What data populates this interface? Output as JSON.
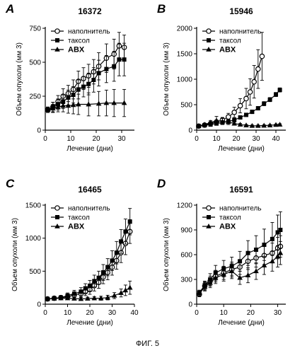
{
  "caption": "ФИГ. 5",
  "chart_data": [
    {
      "type": "line",
      "panel": "A",
      "title": "16372",
      "xlabel": "Лечение (дни)",
      "ylabel": "Объем опухоли (мм 3)",
      "xlim": [
        0,
        35
      ],
      "ylim": [
        0,
        750
      ],
      "xticks": [
        0,
        10,
        20,
        30
      ],
      "yticks": [
        0,
        250,
        500,
        750
      ],
      "legend": [
        "наполнитель",
        "таксол",
        "ABX"
      ],
      "legend_position": "top-left",
      "series": [
        {
          "name": "наполнитель",
          "marker": "open-circle",
          "x": [
            1,
            3,
            5,
            7,
            9,
            11,
            13,
            15,
            17,
            19,
            21,
            24,
            27,
            29,
            31
          ],
          "y": [
            150,
            170,
            210,
            250,
            270,
            300,
            360,
            380,
            400,
            430,
            470,
            530,
            560,
            620,
            610
          ],
          "err": [
            20,
            35,
            45,
            55,
            60,
            70,
            75,
            80,
            85,
            90,
            100,
            105,
            110,
            100,
            90
          ]
        },
        {
          "name": "таксол",
          "marker": "filled-square",
          "x": [
            1,
            3,
            5,
            7,
            9,
            11,
            13,
            15,
            17,
            19,
            21,
            24,
            27,
            29,
            31
          ],
          "y": [
            150,
            170,
            190,
            210,
            240,
            260,
            300,
            320,
            340,
            370,
            420,
            450,
            470,
            520,
            520
          ],
          "err": [
            20,
            35,
            40,
            50,
            55,
            60,
            70,
            75,
            80,
            90,
            95,
            100,
            110,
            120,
            120
          ]
        },
        {
          "name": "ABX",
          "marker": "filled-triangle",
          "x": [
            1,
            3,
            5,
            7,
            9,
            11,
            13,
            17,
            21,
            24,
            27,
            31
          ],
          "y": [
            150,
            160,
            170,
            180,
            180,
            185,
            190,
            190,
            195,
            200,
            200,
            200
          ],
          "err": [
            20,
            30,
            35,
            45,
            55,
            65,
            75,
            85,
            90,
            95,
            100,
            100
          ]
        }
      ]
    },
    {
      "type": "line",
      "panel": "B",
      "title": "15946",
      "xlabel": "Лечение (дни)",
      "ylabel": "Объем опухоли (мм 3)",
      "xlim": [
        0,
        45
      ],
      "ylim": [
        0,
        2000
      ],
      "xticks": [
        0,
        10,
        20,
        30,
        40
      ],
      "yticks": [
        0,
        500,
        1000,
        1500,
        2000
      ],
      "legend": [
        "наполнитель",
        "таксол",
        "ABX"
      ],
      "legend_position": "top-left",
      "series": [
        {
          "name": "наполнитель",
          "marker": "open-circle",
          "x": [
            1,
            4,
            7,
            10,
            13,
            16,
            19,
            22,
            25,
            27,
            29,
            31,
            33
          ],
          "y": [
            80,
            100,
            130,
            160,
            200,
            260,
            350,
            480,
            620,
            750,
            950,
            1200,
            1450
          ],
          "err": [
            20,
            25,
            30,
            40,
            50,
            70,
            100,
            140,
            200,
            260,
            320,
            380,
            470
          ]
        },
        {
          "name": "таксол",
          "marker": "filled-square",
          "x": [
            1,
            4,
            7,
            10,
            13,
            16,
            19,
            22,
            25,
            28,
            31,
            34,
            37,
            40,
            42
          ],
          "y": [
            80,
            95,
            110,
            130,
            150,
            170,
            200,
            250,
            300,
            360,
            430,
            520,
            600,
            700,
            790
          ],
          "err": [
            15,
            15,
            20,
            20,
            25,
            25,
            30,
            30,
            30,
            35,
            35,
            40,
            40,
            40,
            40
          ]
        },
        {
          "name": "ABX",
          "marker": "filled-triangle",
          "x": [
            1,
            4,
            7,
            10,
            13,
            16,
            19,
            22,
            25,
            28,
            31,
            34,
            37,
            40,
            42
          ],
          "y": [
            80,
            110,
            150,
            190,
            170,
            160,
            130,
            110,
            95,
            85,
            85,
            90,
            95,
            105,
            110
          ],
          "err": [
            15,
            20,
            40,
            80,
            60,
            50,
            30,
            20,
            15,
            15,
            15,
            15,
            15,
            15,
            15
          ]
        }
      ]
    },
    {
      "type": "line",
      "panel": "C",
      "title": "16465",
      "xlabel": "Лечение (дни)",
      "ylabel": "Объем опухоли (мм 3)",
      "xlim": [
        0,
        40
      ],
      "ylim": [
        0,
        1500
      ],
      "xticks": [
        0,
        10,
        20,
        30,
        40
      ],
      "yticks": [
        0,
        500,
        1000,
        1500
      ],
      "legend": [
        "наполнитель",
        "таксол",
        "ABX"
      ],
      "legend_position": "top-left",
      "series": [
        {
          "name": "наполнитель",
          "marker": "open-circle",
          "x": [
            1,
            4,
            7,
            10,
            13,
            16,
            18,
            20,
            22,
            24,
            26,
            28,
            30,
            32,
            34,
            36,
            38
          ],
          "y": [
            80,
            90,
            100,
            110,
            140,
            160,
            190,
            220,
            280,
            330,
            410,
            480,
            560,
            660,
            780,
            920,
            1100
          ],
          "err": [
            20,
            25,
            30,
            35,
            40,
            50,
            60,
            70,
            80,
            90,
            100,
            110,
            120,
            130,
            150,
            170,
            180
          ]
        },
        {
          "name": "таксол",
          "marker": "filled-square",
          "x": [
            1,
            4,
            7,
            10,
            13,
            16,
            18,
            20,
            22,
            24,
            26,
            28,
            30,
            32,
            34,
            36,
            38
          ],
          "y": [
            80,
            90,
            100,
            130,
            160,
            190,
            240,
            280,
            350,
            400,
            480,
            560,
            660,
            780,
            950,
            1100,
            1250
          ],
          "err": [
            20,
            25,
            30,
            40,
            50,
            60,
            70,
            80,
            90,
            100,
            120,
            130,
            150,
            170,
            180,
            190,
            200
          ]
        },
        {
          "name": "ABX",
          "marker": "filled-triangle",
          "x": [
            1,
            4,
            7,
            10,
            13,
            16,
            19,
            22,
            25,
            28,
            31,
            34,
            36,
            38
          ],
          "y": [
            80,
            85,
            90,
            90,
            85,
            80,
            85,
            90,
            90,
            100,
            130,
            170,
            210,
            250
          ],
          "err": [
            15,
            15,
            20,
            20,
            20,
            20,
            20,
            25,
            30,
            35,
            45,
            60,
            80,
            100
          ]
        }
      ]
    },
    {
      "type": "line",
      "panel": "D",
      "title": "16591",
      "xlabel": "Лечение (дни)",
      "ylabel": "Объем опухоли (мм 3)",
      "xlim": [
        0,
        33
      ],
      "ylim": [
        0,
        1200
      ],
      "xticks": [
        0,
        10,
        20,
        30
      ],
      "yticks": [
        0,
        300,
        600,
        900,
        1200
      ],
      "legend": [
        "наполнитель",
        "таксол",
        "ABX"
      ],
      "legend_position": "top-left",
      "series": [
        {
          "name": "наполнитель",
          "marker": "open-circle",
          "x": [
            1,
            3,
            5,
            7,
            10,
            13,
            16,
            19,
            22,
            25,
            28,
            30,
            31
          ],
          "y": [
            120,
            220,
            280,
            340,
            380,
            420,
            450,
            520,
            560,
            590,
            620,
            680,
            700
          ],
          "err": [
            30,
            50,
            60,
            70,
            80,
            90,
            90,
            100,
            110,
            110,
            120,
            130,
            130
          ]
        },
        {
          "name": "таксол",
          "marker": "filled-square",
          "x": [
            1,
            3,
            5,
            7,
            10,
            13,
            16,
            19,
            22,
            25,
            28,
            30,
            31
          ],
          "y": [
            140,
            230,
            300,
            380,
            430,
            460,
            520,
            620,
            660,
            720,
            790,
            870,
            900
          ],
          "err": [
            30,
            50,
            70,
            90,
            100,
            110,
            120,
            150,
            170,
            190,
            200,
            210,
            220
          ]
        },
        {
          "name": "ABX",
          "marker": "filled-triangle",
          "x": [
            1,
            3,
            5,
            7,
            10,
            13,
            16,
            19,
            22,
            25,
            28,
            30,
            31
          ],
          "y": [
            130,
            210,
            260,
            320,
            360,
            400,
            320,
            350,
            400,
            470,
            520,
            580,
            620
          ],
          "err": [
            30,
            50,
            60,
            70,
            80,
            90,
            80,
            90,
            100,
            110,
            120,
            130,
            140
          ]
        }
      ]
    }
  ]
}
